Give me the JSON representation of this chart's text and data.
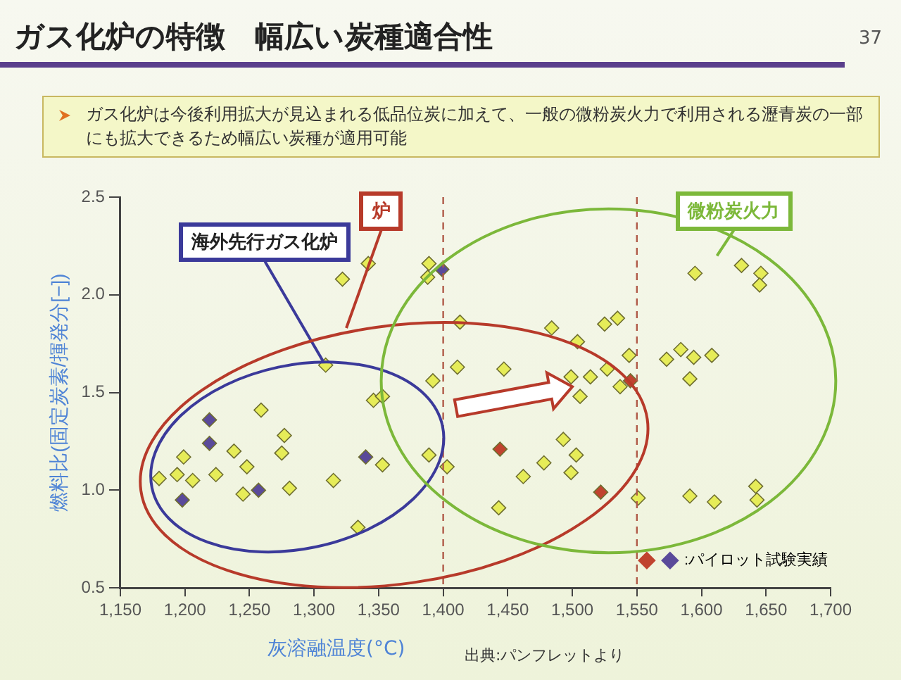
{
  "chart_data": {
    "type": "scatter",
    "title": "ガス化炉の特徴　幅広い炭種適合性",
    "subtitle": "ガス化炉は今後利用拡大が見込まれる低品位炭に加えて、一般の微粉炭火力で利用される瀝青炭の一部にも拡大できるため幅広い炭種が適用可能",
    "xlabel": "灰溶融温度(°C)",
    "ylabel": "燃料比(固定炭素/揮発分[−])",
    "annotations": [
      {
        "text": "海外先行ガス化炉",
        "x": 1307,
        "y": 1.66
      },
      "炉",
      "微粉炭火力",
      "出典:パンフレットより",
      "37"
    ],
    "marker": "diamond",
    "legend": "bottom right",
    "grid": false,
    "xlim": [
      1150,
      1700
    ],
    "ylim": [
      0.5,
      2.5
    ],
    "xticks": [
      {
        "value": 1150,
        "label": "1,150"
      },
      {
        "value": 1200,
        "label": "1,200"
      },
      {
        "value": 1250,
        "label": "1,250"
      },
      {
        "value": 1300,
        "label": "1,300"
      },
      {
        "value": 1350,
        "label": "1,350"
      },
      {
        "value": 1400,
        "label": "1,400"
      },
      {
        "value": 1450,
        "label": "1,450"
      },
      {
        "value": 1500,
        "label": "1,500"
      },
      {
        "value": 1550,
        "label": "1,550"
      },
      {
        "value": 1600,
        "label": "1,600"
      },
      {
        "value": 1650,
        "label": "1,650"
      },
      {
        "value": 1700,
        "label": "1,700"
      }
    ],
    "yticks": [
      0.5,
      {
        "value": 1,
        "label": "1.0"
      },
      1.5,
      {
        "value": 2,
        "label": "2.0"
      },
      2.5
    ],
    "ref_lines": [
      {
        "axis": "x",
        "value": 1400,
        "color": "#b05a48",
        "line_style": "dashed"
      },
      {
        "axis": "x",
        "value": 1550,
        "color": "#b05a48",
        "line_style": "dashed"
      }
    ],
    "series": [
      {
        "color": "#e6ec58",
        "x": [
          1180,
          1194,
          1199,
          1206,
          1224,
          1238,
          1245,
          1248,
          1259,
          1277,
          1275,
          1281,
          1315,
          1309,
          1322,
          1342,
          1334,
          1346,
          1353,
          1353,
          1389,
          1388,
          1392,
          1389,
          1403,
          1413,
          1411,
          1447,
          1443,
          1484,
          1504,
          1525,
          1535,
          1499,
          1514,
          1527,
          1537,
          1506,
          1544,
          1493,
          1503,
          1478,
          1499,
          1462,
          1551,
          1591,
          1610,
          1642,
          1643,
          1573,
          1584,
          1594,
          1608,
          1591,
          1595,
          1631,
          1646,
          1645
        ],
        "values": [
          1.06,
          1.08,
          1.17,
          1.05,
          1.08,
          1.2,
          0.98,
          1.12,
          1.41,
          1.28,
          1.19,
          1.01,
          1.05,
          1.64,
          2.08,
          2.16,
          0.81,
          1.46,
          1.48,
          1.13,
          2.16,
          2.09,
          1.56,
          1.18,
          1.12,
          1.86,
          1.63,
          1.62,
          0.91,
          1.83,
          1.76,
          1.85,
          1.88,
          1.58,
          1.58,
          1.62,
          1.53,
          1.48,
          1.69,
          1.26,
          1.18,
          1.14,
          1.09,
          1.07,
          0.96,
          0.97,
          0.94,
          1.02,
          0.95,
          1.67,
          1.72,
          1.68,
          1.69,
          1.57,
          2.11,
          2.15,
          2.11,
          2.05
        ]
      },
      {
        "name": ":パイロット試験実績",
        "colors": [
          "#c0432f",
          "#c0432f",
          "#c0432f",
          "#5a4a9a",
          "#5a4a9a",
          "#5a4a9a",
          "#5a4a9a",
          "#5a4a9a",
          "#5a4a9a"
        ],
        "x": [
          1444,
          1545,
          1522,
          1219,
          1219,
          1198,
          1257,
          1340,
          1399
        ],
        "values": [
          1.21,
          1.56,
          0.99,
          1.36,
          1.24,
          0.95,
          1.0,
          1.17,
          2.13
        ]
      }
    ]
  }
}
